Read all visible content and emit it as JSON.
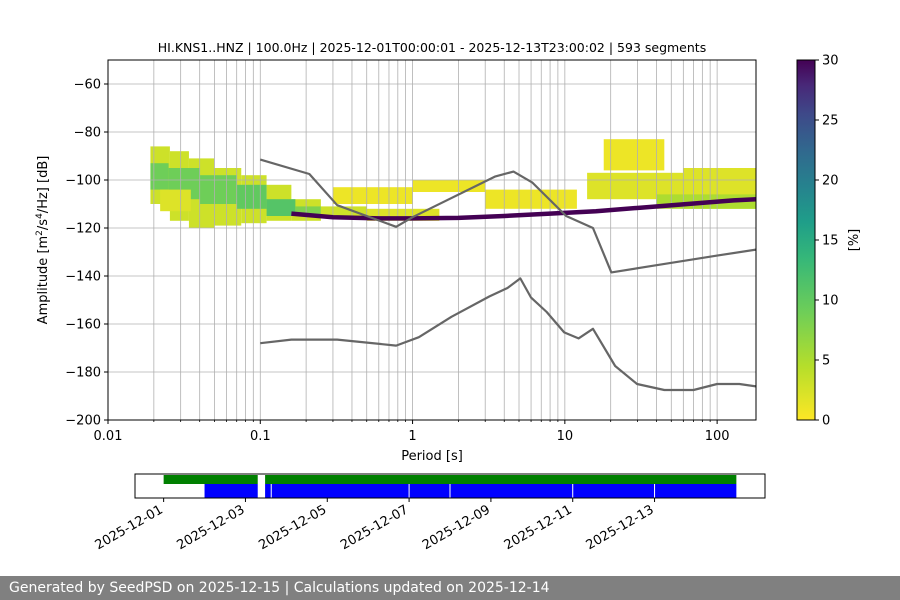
{
  "chart_data": [
    {
      "type": "heatmap",
      "title": "HI.KNS1..HNZ | 100.0Hz | 2025-12-01T00:00:01 - 2025-12-13T23:00:02 | 593 segments",
      "xlabel": "Period [s]",
      "ylabel": "Amplitude [m²/s⁴/Hz] [dB]",
      "xscale": "log",
      "xlim": [
        0.01,
        180
      ],
      "ylim": [
        -200,
        -50
      ],
      "xticks": [
        "0.01",
        "0.1",
        "1",
        "10",
        "100"
      ],
      "yticks": [
        "−60",
        "−80",
        "−100",
        "−120",
        "−140",
        "−160",
        "−180",
        "−200"
      ],
      "grid": true,
      "colorbar": {
        "label": "[%]",
        "range": [
          0,
          30
        ],
        "ticks": [
          "0",
          "5",
          "10",
          "15",
          "20",
          "25",
          "30"
        ],
        "colormap": [
          "#fde725",
          "#5ec962",
          "#21918c",
          "#3b528b",
          "#440154"
        ]
      },
      "series": [
        {
          "x": [
            0.1,
            0.21,
            0.32,
            0.78,
            1.0,
            3.5,
            4.6,
            6.1,
            10.2,
            15.3,
            20.2,
            40.0,
            100.0,
            180.0
          ],
          "y": [
            -91.5,
            -97.5,
            -110.5,
            -119.5,
            -115.5,
            -98.5,
            -96.5,
            -101.0,
            -115.0,
            -120.0,
            -138.5,
            -135.5,
            -131.5,
            -129.0
          ]
        },
        {
          "x": [
            0.1,
            0.16,
            0.21,
            0.32,
            0.78,
            1.1,
            1.8,
            3.2,
            4.2,
            5.1,
            6.0,
            7.6,
            9.9,
            12.3,
            15.3,
            21.4,
            29.8,
            45.0,
            70.0,
            100.0,
            140.0,
            180.0
          ],
          "y": [
            -168.0,
            -166.5,
            -166.5,
            -166.5,
            -169.0,
            -165.5,
            -157.0,
            -148.5,
            -145.0,
            -141.0,
            -149.0,
            -155.0,
            -163.5,
            -166.0,
            -162.0,
            -177.5,
            -185.0,
            -187.5,
            -187.5,
            -185.0,
            -185.0,
            -186.0
          ]
        }
      ],
      "density": [
        {
          "x": [
            0.019,
            0.0255
          ],
          "y": [
            -110,
            -86
          ],
          "level": 3
        },
        {
          "x": [
            0.0255,
            0.034
          ],
          "y": [
            -117,
            -88
          ],
          "level": 3
        },
        {
          "x": [
            0.034,
            0.05
          ],
          "y": [
            -120,
            -91
          ],
          "level": 3
        },
        {
          "x": [
            0.05,
            0.075
          ],
          "y": [
            -119,
            -95
          ],
          "level": 3
        },
        {
          "x": [
            0.075,
            0.11
          ],
          "y": [
            -118,
            -98
          ],
          "level": 3
        },
        {
          "x": [
            0.11,
            0.16
          ],
          "y": [
            -117,
            -102
          ],
          "level": 3
        },
        {
          "x": [
            0.16,
            0.25
          ],
          "y": [
            -117,
            -108
          ],
          "level": 3
        },
        {
          "x": [
            0.019,
            0.025
          ],
          "y": [
            -104,
            -93
          ],
          "level": 9
        },
        {
          "x": [
            0.025,
            0.04
          ],
          "y": [
            -108,
            -95
          ],
          "level": 9
        },
        {
          "x": [
            0.04,
            0.07
          ],
          "y": [
            -110,
            -98
          ],
          "level": 9
        },
        {
          "x": [
            0.07,
            0.11
          ],
          "y": [
            -112,
            -102
          ],
          "level": 10
        },
        {
          "x": [
            0.11,
            0.17
          ],
          "y": [
            -115,
            -108
          ],
          "level": 11
        },
        {
          "x": [
            0.17,
            0.25
          ],
          "y": [
            -115,
            -111
          ],
          "level": 8
        },
        {
          "x": [
            0.022,
            0.035
          ],
          "y": [
            -113,
            -104
          ],
          "level": 2
        },
        {
          "x": [
            0.25,
            0.5
          ],
          "y": [
            -116,
            -111
          ],
          "level": 3
        },
        {
          "x": [
            0.5,
            1.5
          ],
          "y": [
            -117,
            -112
          ],
          "level": 2
        },
        {
          "x": [
            0.3,
            1.0
          ],
          "y": [
            -110,
            -103
          ],
          "level": 1
        },
        {
          "x": [
            1.0,
            3.0
          ],
          "y": [
            -105,
            -100
          ],
          "level": 1
        },
        {
          "x": [
            3.0,
            12.0
          ],
          "y": [
            -112,
            -104
          ],
          "level": 1
        },
        {
          "x": [
            18.0,
            45.0
          ],
          "y": [
            -96,
            -83
          ],
          "level": 1
        },
        {
          "x": [
            14.0,
            60.0
          ],
          "y": [
            -108,
            -97
          ],
          "level": 2
        },
        {
          "x": [
            60.0,
            180.0
          ],
          "y": [
            -112,
            -95
          ],
          "level": 2
        },
        {
          "x": [
            40.0,
            180.0
          ],
          "y": [
            -112,
            -106
          ],
          "level": 5
        }
      ],
      "mode_line": {
        "x": [
          0.16,
          0.3,
          0.6,
          1.0,
          2.0,
          4.0,
          8.0,
          16.0,
          32.0,
          64.0,
          128.0,
          180.0
        ],
        "y": [
          -114.0,
          -115.5,
          -116.0,
          -116.0,
          -115.8,
          -115.0,
          -114.0,
          -113.0,
          -111.5,
          -110.0,
          -108.5,
          -108.0
        ],
        "level": 30
      }
    },
    {
      "type": "timeline",
      "xticks": [
        "2025-12-01",
        "2025-12-03",
        "2025-12-05",
        "2025-12-07",
        "2025-12-09",
        "2025-12-11",
        "2025-12-13"
      ],
      "tick_days": [
        1,
        3,
        5,
        7,
        9,
        11,
        13
      ],
      "xlim_days": [
        30.3,
        45.7
      ],
      "series": [
        {
          "color": "#008000",
          "segments": [
            [
              31.0,
              33.3
            ],
            [
              33.48,
              45.0
            ]
          ]
        },
        {
          "color": "#0000ff",
          "segments": [
            [
              32.0,
              33.3
            ],
            [
              33.48,
              45.0
            ]
          ],
          "gaps": [
            33.63,
            37.0,
            38.0,
            41.0,
            43.0
          ]
        }
      ]
    }
  ],
  "footer": {
    "text": "Generated by SeedPSD on 2025-12-15 | Calculations updated on 2025-12-14"
  }
}
